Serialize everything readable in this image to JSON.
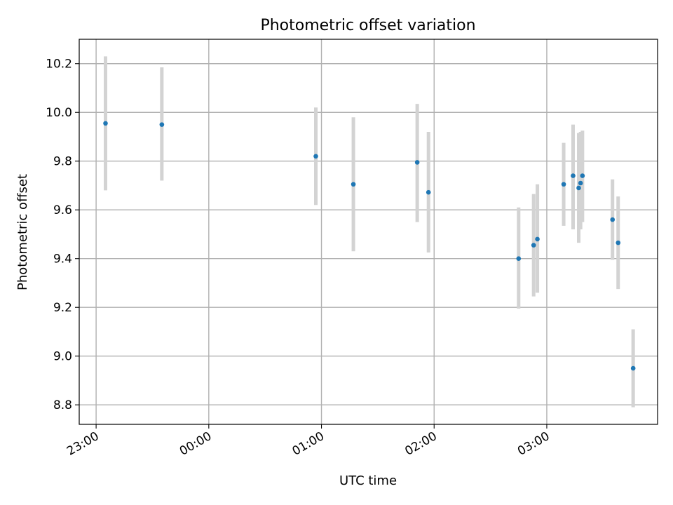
{
  "chart_data": {
    "type": "scatter",
    "title": "Photometric offset variation",
    "xlabel": "UTC time",
    "ylabel": "Photometric offset",
    "x_tick_labels": [
      "23:00",
      "00:00",
      "01:00",
      "02:00",
      "03:00"
    ],
    "y_tick_labels": [
      "8.8",
      "9.0",
      "9.2",
      "9.4",
      "9.6",
      "9.8",
      "10.0",
      "10.2"
    ],
    "xlim": [
      "22:51",
      "03:59"
    ],
    "ylim": [
      8.72,
      10.3
    ],
    "grid": true,
    "marker_color": "#1f77b4",
    "errorbar_color": "#d3d3d3",
    "series": [
      {
        "points": [
          {
            "x": "23:05",
            "y": 9.955,
            "ylow": 9.68,
            "yhigh": 10.23
          },
          {
            "x": "23:35",
            "y": 9.95,
            "ylow": 9.72,
            "yhigh": 10.185
          },
          {
            "x": "00:57",
            "y": 9.82,
            "ylow": 9.62,
            "yhigh": 10.02
          },
          {
            "x": "01:17",
            "y": 9.705,
            "ylow": 9.43,
            "yhigh": 9.98
          },
          {
            "x": "01:51",
            "y": 9.795,
            "ylow": 9.55,
            "yhigh": 10.035
          },
          {
            "x": "01:57",
            "y": 9.672,
            "ylow": 9.425,
            "yhigh": 9.92
          },
          {
            "x": "02:45",
            "y": 9.4,
            "ylow": 9.195,
            "yhigh": 9.61
          },
          {
            "x": "02:53",
            "y": 9.455,
            "ylow": 9.245,
            "yhigh": 9.665
          },
          {
            "x": "02:55",
            "y": 9.48,
            "ylow": 9.26,
            "yhigh": 9.705
          },
          {
            "x": "03:09",
            "y": 9.705,
            "ylow": 9.535,
            "yhigh": 9.875
          },
          {
            "x": "03:14",
            "y": 9.74,
            "ylow": 9.52,
            "yhigh": 9.95
          },
          {
            "x": "03:17",
            "y": 9.69,
            "ylow": 9.465,
            "yhigh": 9.915
          },
          {
            "x": "03:18",
            "y": 9.71,
            "ylow": 9.52,
            "yhigh": 9.92
          },
          {
            "x": "03:19",
            "y": 9.74,
            "ylow": 9.55,
            "yhigh": 9.925
          },
          {
            "x": "03:35",
            "y": 9.56,
            "ylow": 9.395,
            "yhigh": 9.725
          },
          {
            "x": "03:38",
            "y": 9.465,
            "ylow": 9.275,
            "yhigh": 9.655
          },
          {
            "x": "03:46",
            "y": 8.95,
            "ylow": 8.79,
            "yhigh": 9.11
          }
        ]
      }
    ]
  }
}
